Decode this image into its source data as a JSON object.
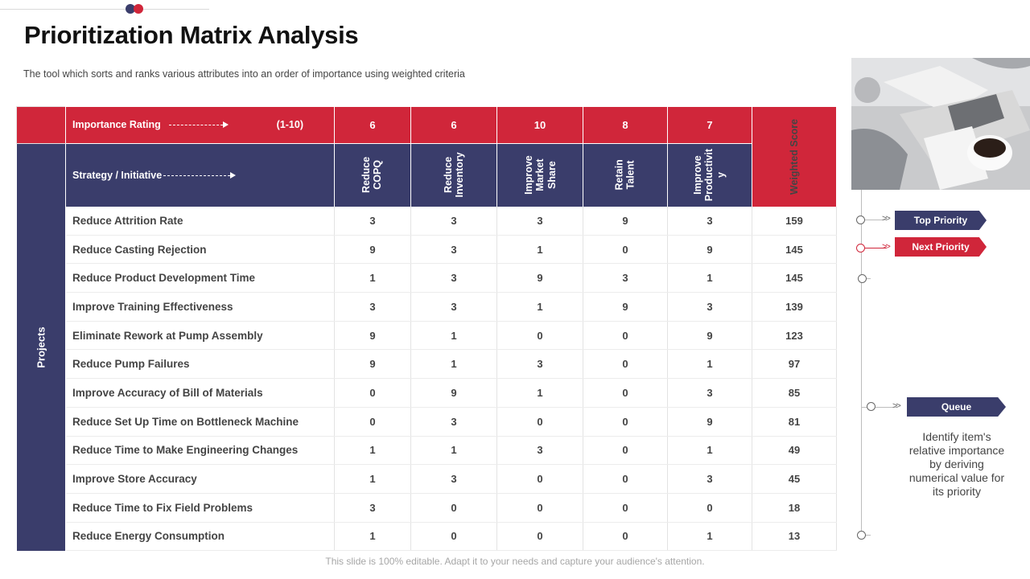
{
  "title": "Prioritization Matrix Analysis",
  "subtitle": "The tool which sorts and ranks various  attributes into an order  of importance using weighted  criteria",
  "matrix": {
    "importance_label": "Importance Rating",
    "range_label": "(1-10)",
    "strategy_label": "Strategy  / Initiative",
    "projects_label": "Projects",
    "score_header": "Weighted  Score",
    "criteria": [
      {
        "rating": "6",
        "label": "Reduce\nCOPQ"
      },
      {
        "rating": "6",
        "label": "Reduce\nInventory"
      },
      {
        "rating": "10",
        "label": "Improve\nMarket\nShare"
      },
      {
        "rating": "8",
        "label": "Retain\nTalent"
      },
      {
        "rating": "7",
        "label": "Improve\nProductivit\ny"
      }
    ],
    "rows": [
      {
        "name": "Reduce Attrition Rate",
        "values": [
          "3",
          "3",
          "3",
          "9",
          "3"
        ],
        "score": "159"
      },
      {
        "name": "Reduce Casting Rejection",
        "values": [
          "9",
          "3",
          "1",
          "0",
          "9"
        ],
        "score": "145"
      },
      {
        "name": "Reduce Product Development Time",
        "values": [
          "1",
          "3",
          "9",
          "3",
          "1"
        ],
        "score": "145"
      },
      {
        "name": "Improve Training  Effectiveness",
        "values": [
          "3",
          "3",
          "1",
          "9",
          "3"
        ],
        "score": "139"
      },
      {
        "name": "Eliminate Rework at Pump Assembly",
        "values": [
          "9",
          "1",
          "0",
          "0",
          "9"
        ],
        "score": "123"
      },
      {
        "name": "Reduce Pump Failures",
        "values": [
          "9",
          "1",
          "3",
          "0",
          "1"
        ],
        "score": "97"
      },
      {
        "name": "Improve Accuracy  of Bill of Materials",
        "values": [
          "0",
          "9",
          "1",
          "0",
          "3"
        ],
        "score": "85"
      },
      {
        "name": "Reduce Set Up Time on Bottleneck Machine",
        "values": [
          "0",
          "3",
          "0",
          "0",
          "9"
        ],
        "score": "81"
      },
      {
        "name": "Reduce Time to Make Engineering Changes",
        "values": [
          "1",
          "1",
          "3",
          "0",
          "1"
        ],
        "score": "49"
      },
      {
        "name": "Improve Store Accuracy",
        "values": [
          "1",
          "3",
          "0",
          "0",
          "3"
        ],
        "score": "45"
      },
      {
        "name": "Reduce Time to Fix Field Problems",
        "values": [
          "3",
          "0",
          "0",
          "0",
          "0"
        ],
        "score": "18"
      },
      {
        "name": "Reduce Energy Consumption",
        "values": [
          "1",
          "0",
          "0",
          "0",
          "1"
        ],
        "score": "13"
      }
    ]
  },
  "legend": {
    "top_priority": "Top Priority",
    "next_priority": "Next Priority",
    "queue": "Queue",
    "description": "Identify item's relative importance by deriving numerical value for its priority"
  },
  "colors": {
    "navy": "#3a3d6b",
    "red": "#d0263a"
  },
  "icons": [
    "chevron-double-right-icon"
  ],
  "footer": "This slide is 100% editable. Adapt it to your needs and capture your audience's attention."
}
